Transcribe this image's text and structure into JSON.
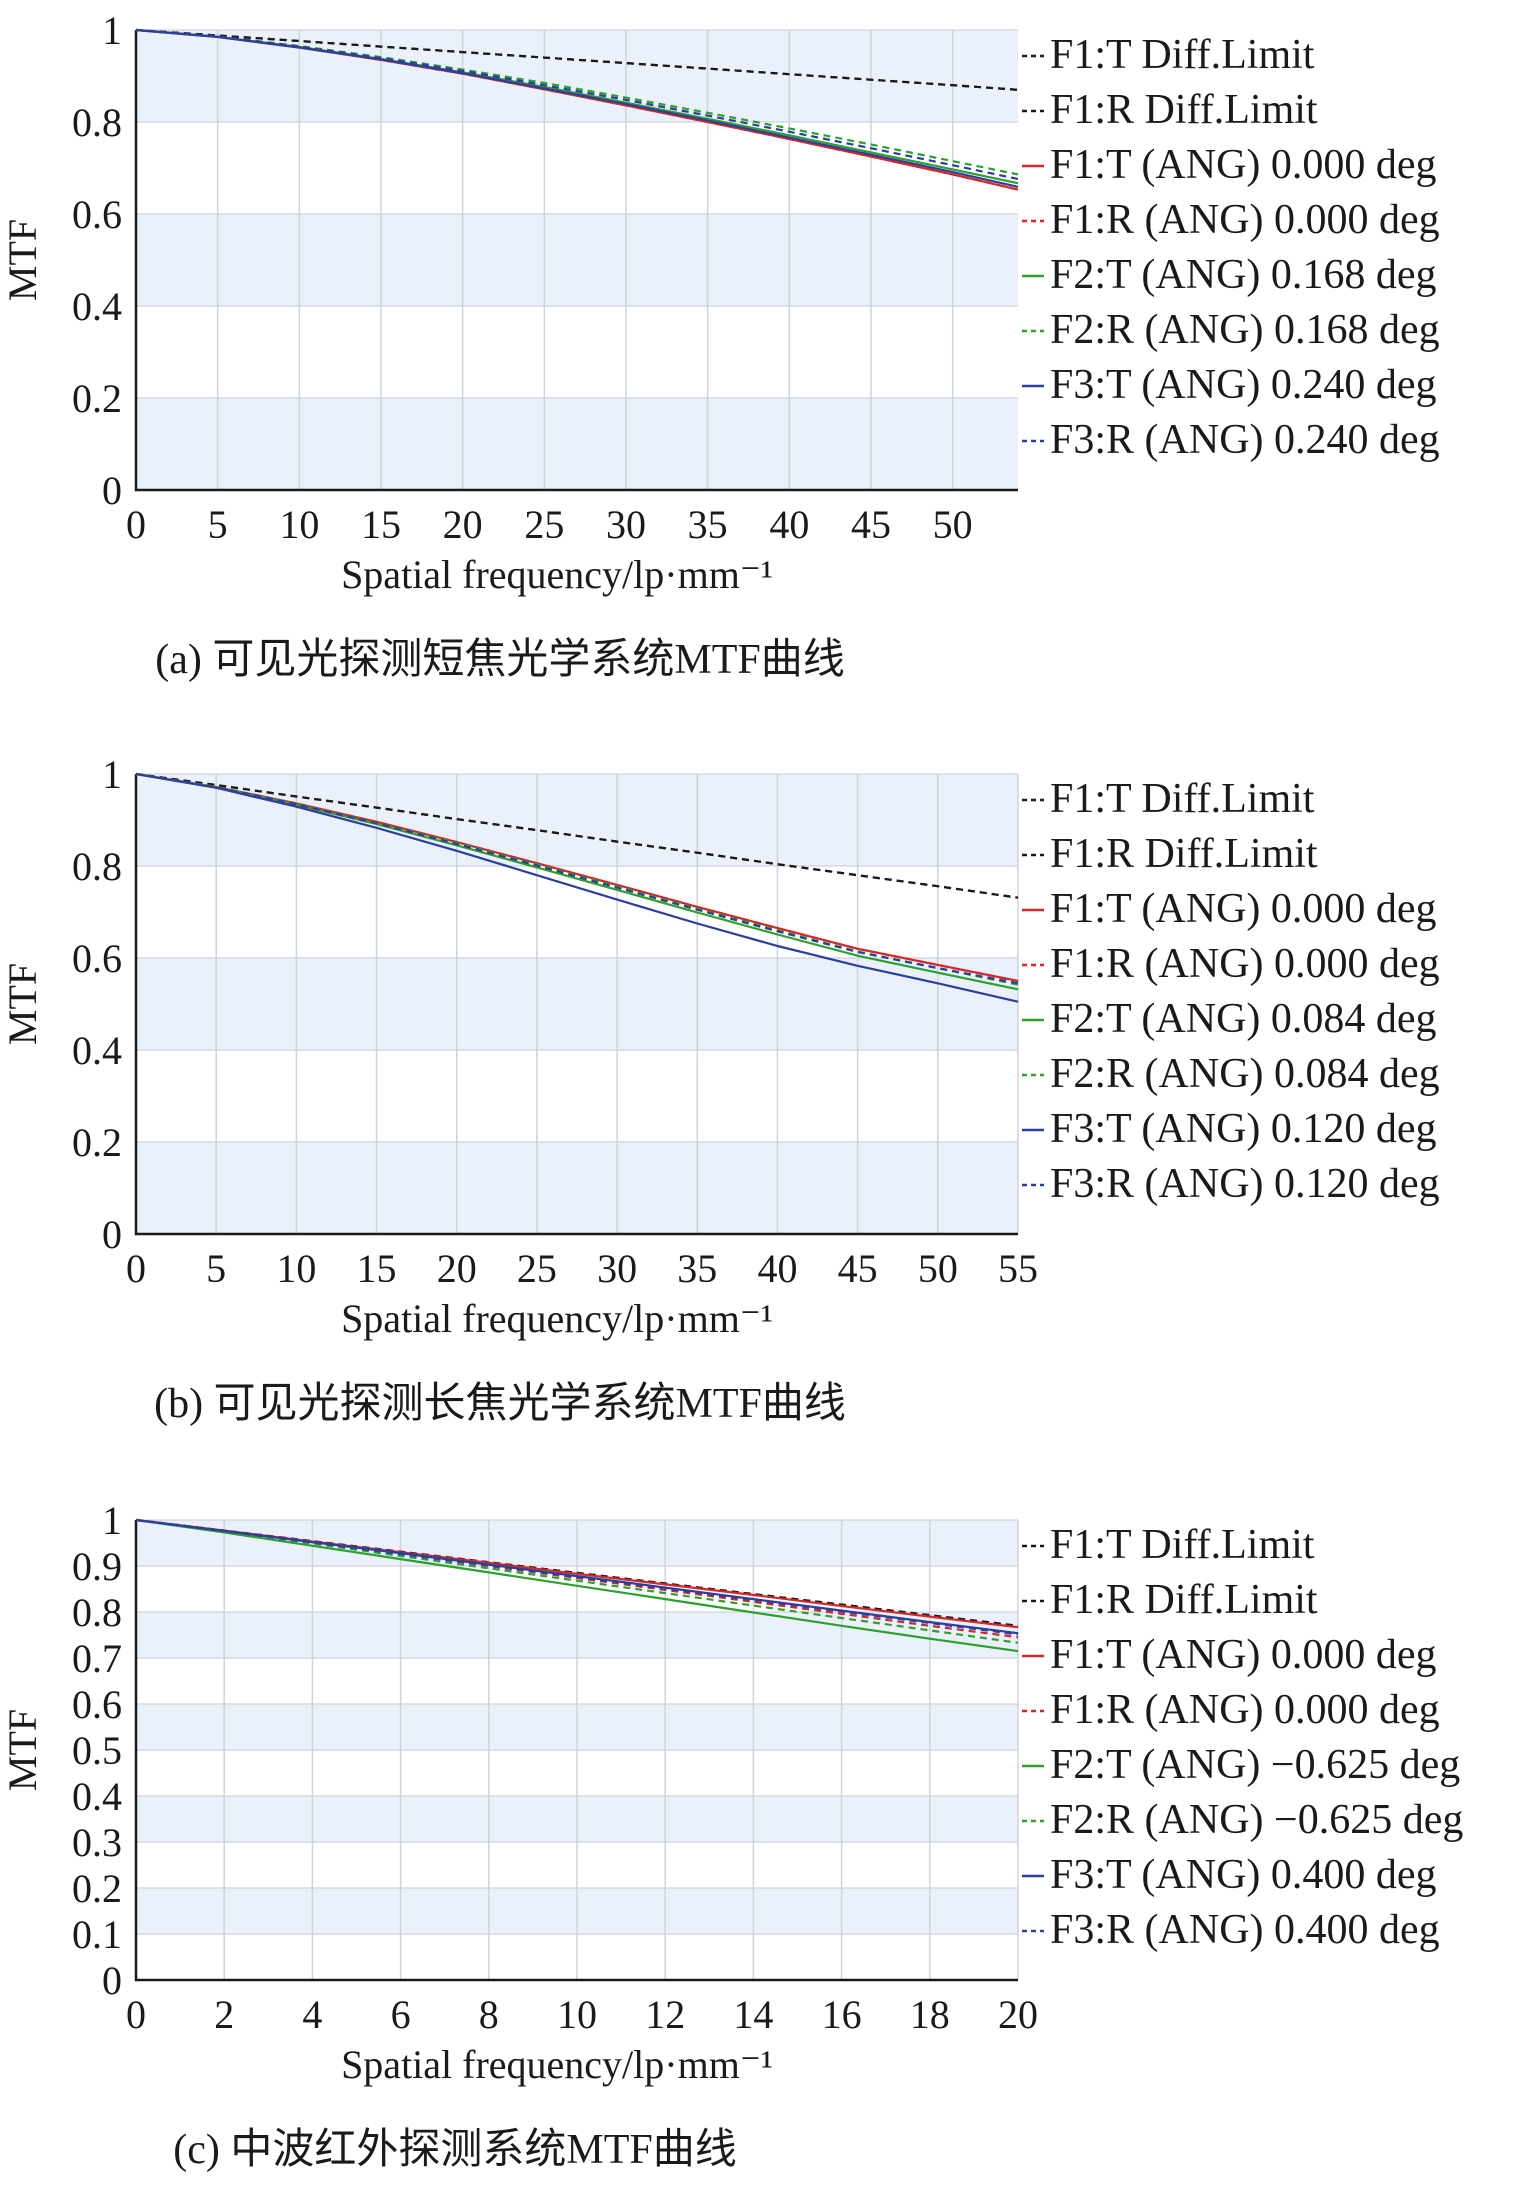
{
  "chart_data": [
    {
      "type": "line",
      "caption": "(a) 可见光探测短焦光学系统MTF曲线",
      "xlabel": "Spatial frequency/lp·mm⁻¹",
      "ylabel": "MTF",
      "xlim": [
        0,
        54
      ],
      "ylim": [
        0,
        1
      ],
      "xticks": [
        0,
        5,
        10,
        15,
        20,
        25,
        30,
        35,
        40,
        45,
        50
      ],
      "yticks": [
        0,
        0.2,
        0.4,
        0.6,
        0.8,
        1
      ],
      "ytick_labels": [
        "0",
        "0.2",
        "0.4",
        "0.6",
        "0.8",
        "1"
      ],
      "grid": true,
      "background_bands": true,
      "legend_position": "right",
      "series": [
        {
          "name": "F1:T Diff.Limit",
          "color": "#1a1a1a",
          "dash": true,
          "x": [
            0,
            5,
            10,
            15,
            20,
            25,
            30,
            35,
            40,
            45,
            50,
            54
          ],
          "y": [
            1.0,
            0.988,
            0.976,
            0.964,
            0.952,
            0.94,
            0.928,
            0.916,
            0.904,
            0.892,
            0.88,
            0.87
          ]
        },
        {
          "name": "F1:R Diff.Limit",
          "color": "#1a1a1a",
          "dash": true,
          "x": [
            0,
            5,
            10,
            15,
            20,
            25,
            30,
            35,
            40,
            45,
            50,
            54
          ],
          "y": [
            1.0,
            0.988,
            0.976,
            0.964,
            0.952,
            0.94,
            0.928,
            0.916,
            0.904,
            0.892,
            0.88,
            0.87
          ]
        },
        {
          "name": "F1:T (ANG) 0.000 deg",
          "color": "#d62728",
          "dash": false,
          "x": [
            0,
            5,
            10,
            15,
            20,
            25,
            30,
            35,
            40,
            45,
            50,
            54
          ],
          "y": [
            1.0,
            0.985,
            0.962,
            0.935,
            0.905,
            0.871,
            0.836,
            0.8,
            0.763,
            0.725,
            0.686,
            0.653
          ]
        },
        {
          "name": "F1:R (ANG) 0.000 deg",
          "color": "#d62728",
          "dash": true,
          "x": [
            0,
            5,
            10,
            15,
            20,
            25,
            30,
            35,
            40,
            45,
            50,
            54
          ],
          "y": [
            1.0,
            0.985,
            0.962,
            0.935,
            0.905,
            0.871,
            0.836,
            0.8,
            0.763,
            0.725,
            0.686,
            0.653
          ]
        },
        {
          "name": "F2:T (ANG) 0.168 deg",
          "color": "#2ca02c",
          "dash": false,
          "x": [
            0,
            5,
            10,
            15,
            20,
            25,
            30,
            35,
            40,
            45,
            50,
            54
          ],
          "y": [
            1.0,
            0.985,
            0.963,
            0.937,
            0.908,
            0.876,
            0.842,
            0.807,
            0.771,
            0.734,
            0.697,
            0.667
          ]
        },
        {
          "name": "F2:R (ANG) 0.168 deg",
          "color": "#2ca02c",
          "dash": true,
          "x": [
            0,
            5,
            10,
            15,
            20,
            25,
            30,
            35,
            40,
            45,
            50,
            54
          ],
          "y": [
            1.0,
            0.986,
            0.965,
            0.941,
            0.914,
            0.885,
            0.853,
            0.82,
            0.786,
            0.751,
            0.715,
            0.686
          ]
        },
        {
          "name": "F3:T (ANG) 0.240 deg",
          "color": "#2c3e9e",
          "dash": false,
          "x": [
            0,
            5,
            10,
            15,
            20,
            25,
            30,
            35,
            40,
            45,
            50,
            54
          ],
          "y": [
            1.0,
            0.985,
            0.962,
            0.936,
            0.906,
            0.873,
            0.839,
            0.803,
            0.766,
            0.729,
            0.691,
            0.659
          ]
        },
        {
          "name": "F3:R (ANG) 0.240 deg",
          "color": "#2c3e9e",
          "dash": true,
          "x": [
            0,
            5,
            10,
            15,
            20,
            25,
            30,
            35,
            40,
            45,
            50,
            54
          ],
          "y": [
            1.0,
            0.986,
            0.964,
            0.939,
            0.911,
            0.88,
            0.848,
            0.814,
            0.779,
            0.743,
            0.706,
            0.676
          ]
        }
      ]
    },
    {
      "type": "line",
      "caption": "(b) 可见光探测长焦光学系统MTF曲线",
      "xlabel": "Spatial frequency/lp·mm⁻¹",
      "ylabel": "MTF",
      "xlim": [
        0,
        55
      ],
      "ylim": [
        0,
        1
      ],
      "xticks": [
        0,
        5,
        10,
        15,
        20,
        25,
        30,
        35,
        40,
        45,
        50,
        55
      ],
      "yticks": [
        0,
        0.2,
        0.4,
        0.6,
        0.8,
        1
      ],
      "ytick_labels": [
        "0",
        "0.2",
        "0.4",
        "0.6",
        "0.8",
        "1"
      ],
      "grid": true,
      "background_bands": true,
      "legend_position": "right",
      "series": [
        {
          "name": "F1:T Diff.Limit",
          "color": "#1a1a1a",
          "dash": true,
          "x": [
            0,
            5,
            10,
            15,
            20,
            25,
            30,
            35,
            40,
            45,
            50,
            55
          ],
          "y": [
            1.0,
            0.976,
            0.951,
            0.927,
            0.902,
            0.878,
            0.853,
            0.829,
            0.804,
            0.78,
            0.756,
            0.731
          ]
        },
        {
          "name": "F1:R Diff.Limit",
          "color": "#1a1a1a",
          "dash": true,
          "x": [
            0,
            5,
            10,
            15,
            20,
            25,
            30,
            35,
            40,
            45,
            50,
            55
          ],
          "y": [
            1.0,
            0.976,
            0.951,
            0.927,
            0.902,
            0.878,
            0.853,
            0.829,
            0.804,
            0.78,
            0.756,
            0.731
          ]
        },
        {
          "name": "F1:T (ANG) 0.000 deg",
          "color": "#d62728",
          "dash": false,
          "x": [
            0,
            5,
            10,
            15,
            20,
            25,
            30,
            35,
            40,
            45,
            50,
            55
          ],
          "y": [
            1.0,
            0.972,
            0.936,
            0.896,
            0.852,
            0.806,
            0.759,
            0.711,
            0.665,
            0.62,
            0.585,
            0.55
          ]
        },
        {
          "name": "F1:R (ANG) 0.000 deg",
          "color": "#d62728",
          "dash": true,
          "x": [
            0,
            5,
            10,
            15,
            20,
            25,
            30,
            35,
            40,
            45,
            50,
            55
          ],
          "y": [
            1.0,
            0.972,
            0.936,
            0.896,
            0.852,
            0.806,
            0.759,
            0.711,
            0.665,
            0.62,
            0.585,
            0.55
          ]
        },
        {
          "name": "F2:T (ANG) 0.084 deg",
          "color": "#2ca02c",
          "dash": false,
          "x": [
            0,
            5,
            10,
            15,
            20,
            25,
            30,
            35,
            40,
            45,
            50,
            55
          ],
          "y": [
            1.0,
            0.971,
            0.933,
            0.891,
            0.845,
            0.797,
            0.748,
            0.699,
            0.651,
            0.605,
            0.568,
            0.532
          ]
        },
        {
          "name": "F2:R (ANG) 0.084 deg",
          "color": "#2ca02c",
          "dash": true,
          "x": [
            0,
            5,
            10,
            15,
            20,
            25,
            30,
            35,
            40,
            45,
            50,
            55
          ],
          "y": [
            1.0,
            0.972,
            0.935,
            0.894,
            0.85,
            0.803,
            0.755,
            0.707,
            0.66,
            0.614,
            0.578,
            0.542
          ]
        },
        {
          "name": "F3:T (ANG) 0.120 deg",
          "color": "#2c3e9e",
          "dash": false,
          "x": [
            0,
            5,
            10,
            15,
            20,
            25,
            30,
            35,
            40,
            45,
            50,
            55
          ],
          "y": [
            1.0,
            0.97,
            0.929,
            0.883,
            0.833,
            0.78,
            0.727,
            0.675,
            0.626,
            0.583,
            0.545,
            0.505
          ]
        },
        {
          "name": "F3:R (ANG) 0.120 deg",
          "color": "#2c3e9e",
          "dash": true,
          "x": [
            0,
            5,
            10,
            15,
            20,
            25,
            30,
            35,
            40,
            45,
            50,
            55
          ],
          "y": [
            1.0,
            0.971,
            0.934,
            0.893,
            0.848,
            0.801,
            0.753,
            0.705,
            0.658,
            0.613,
            0.578,
            0.545
          ]
        }
      ]
    },
    {
      "type": "line",
      "caption": "(c) 中波红外探测系统MTF曲线",
      "xlabel": "Spatial frequency/lp·mm⁻¹",
      "ylabel": "MTF",
      "xlim": [
        0,
        20
      ],
      "ylim": [
        0,
        1
      ],
      "xticks": [
        0,
        2,
        4,
        6,
        8,
        10,
        12,
        14,
        16,
        18,
        20
      ],
      "yticks": [
        0,
        0.1,
        0.2,
        0.3,
        0.4,
        0.5,
        0.6,
        0.7,
        0.8,
        0.9,
        1
      ],
      "ytick_labels": [
        "0",
        "0.1",
        "0.2",
        "0.3",
        "0.4",
        "0.5",
        "0.6",
        "0.7",
        "0.8",
        "0.9",
        "1"
      ],
      "grid": true,
      "background_bands": true,
      "legend_position": "right",
      "series": [
        {
          "name": "F1:T Diff.Limit",
          "color": "#1a1a1a",
          "dash": true,
          "x": [
            0,
            2,
            4,
            6,
            8,
            10,
            12,
            14,
            16,
            18,
            20
          ],
          "y": [
            1.0,
            0.977,
            0.954,
            0.931,
            0.908,
            0.885,
            0.862,
            0.839,
            0.816,
            0.793,
            0.77
          ]
        },
        {
          "name": "F1:R Diff.Limit",
          "color": "#1a1a1a",
          "dash": true,
          "x": [
            0,
            2,
            4,
            6,
            8,
            10,
            12,
            14,
            16,
            18,
            20
          ],
          "y": [
            1.0,
            0.977,
            0.954,
            0.931,
            0.908,
            0.885,
            0.862,
            0.839,
            0.816,
            0.793,
            0.77
          ]
        },
        {
          "name": "F1:T (ANG) 0.000 deg",
          "color": "#d62728",
          "dash": false,
          "x": [
            0,
            2,
            4,
            6,
            8,
            10,
            12,
            14,
            16,
            18,
            20
          ],
          "y": [
            1.0,
            0.977,
            0.953,
            0.93,
            0.907,
            0.883,
            0.86,
            0.837,
            0.813,
            0.79,
            0.767
          ]
        },
        {
          "name": "F1:R (ANG) 0.000 deg",
          "color": "#d62728",
          "dash": true,
          "x": [
            0,
            2,
            4,
            6,
            8,
            10,
            12,
            14,
            16,
            18,
            20
          ],
          "y": [
            1.0,
            0.976,
            0.951,
            0.926,
            0.9,
            0.874,
            0.848,
            0.822,
            0.796,
            0.77,
            0.745
          ]
        },
        {
          "name": "F2:T (ANG) −0.625 deg",
          "color": "#2ca02c",
          "dash": false,
          "x": [
            0,
            2,
            4,
            6,
            8,
            10,
            12,
            14,
            16,
            18,
            20
          ],
          "y": [
            1.0,
            0.973,
            0.944,
            0.915,
            0.886,
            0.857,
            0.828,
            0.799,
            0.77,
            0.742,
            0.715
          ]
        },
        {
          "name": "F2:R (ANG) −0.625 deg",
          "color": "#2ca02c",
          "dash": true,
          "x": [
            0,
            2,
            4,
            6,
            8,
            10,
            12,
            14,
            16,
            18,
            20
          ],
          "y": [
            1.0,
            0.975,
            0.949,
            0.922,
            0.895,
            0.868,
            0.841,
            0.814,
            0.787,
            0.76,
            0.733
          ]
        },
        {
          "name": "F3:T (ANG) 0.400 deg",
          "color": "#2c3e9e",
          "dash": false,
          "x": [
            0,
            2,
            4,
            6,
            8,
            10,
            12,
            14,
            16,
            18,
            20
          ],
          "y": [
            1.0,
            0.976,
            0.952,
            0.928,
            0.903,
            0.878,
            0.853,
            0.828,
            0.803,
            0.778,
            0.754
          ]
        },
        {
          "name": "F3:R (ANG) 0.400 deg",
          "color": "#2c3e9e",
          "dash": true,
          "x": [
            0,
            2,
            4,
            6,
            8,
            10,
            12,
            14,
            16,
            18,
            20
          ],
          "y": [
            1.0,
            0.976,
            0.951,
            0.926,
            0.901,
            0.876,
            0.851,
            0.826,
            0.801,
            0.776,
            0.751
          ]
        }
      ]
    }
  ]
}
